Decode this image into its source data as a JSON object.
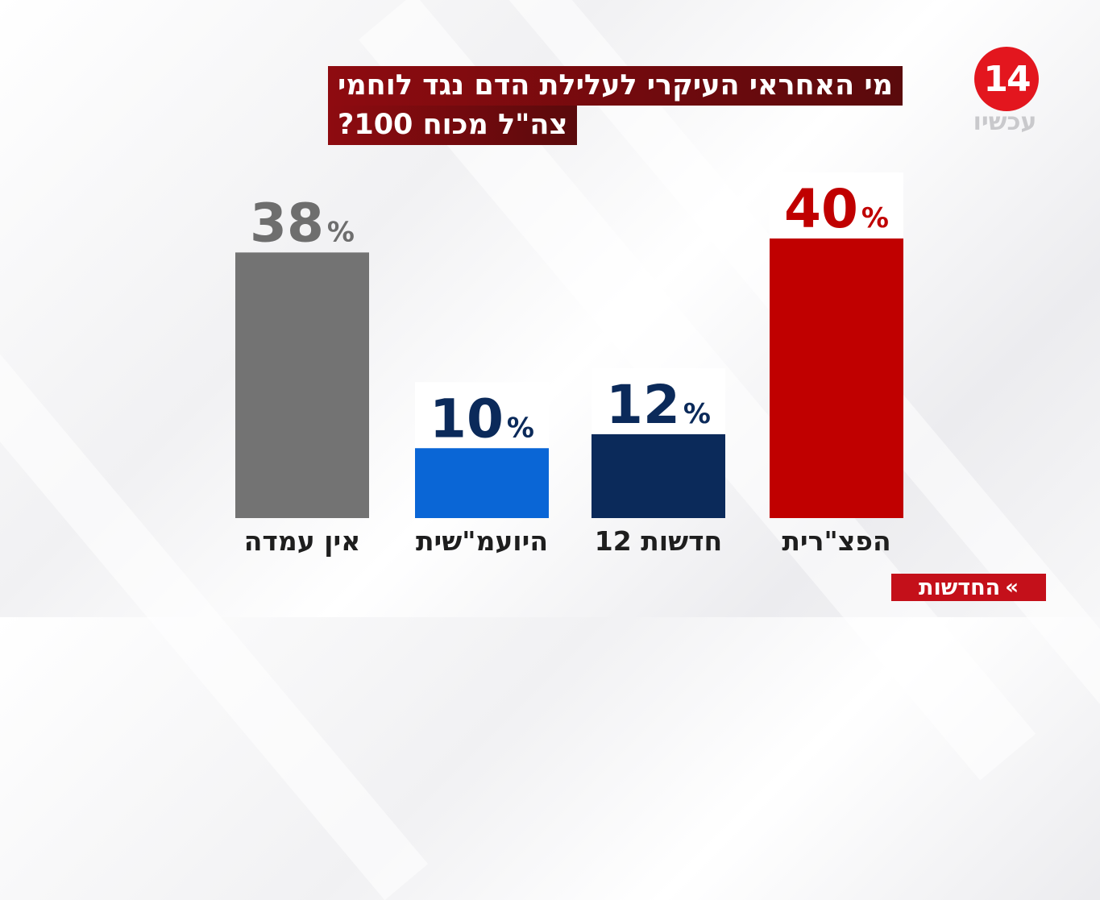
{
  "title_lines": [
    "מי האחראי העיקרי לעלילת הדם נגד לוחמי",
    "צה\"ל מכוח 100?"
  ],
  "logo": {
    "number": "14",
    "subtitle": "עכשיו",
    "color": "#e3161e"
  },
  "footer": {
    "label": "החדשות",
    "chevron": "»"
  },
  "chart_data": {
    "type": "bar",
    "title": "מי האחראי העיקרי לעלילת הדם נגד לוחמי צה\"ל מכוח 100?",
    "categories": [
      "אין עמדה",
      "היועמ\"שית",
      "חדשות 12",
      "הפצ\"רית"
    ],
    "values": [
      38,
      10,
      12,
      40
    ],
    "value_suffix": "%",
    "colors": [
      "#737373",
      "#0a66d6",
      "#0b2a5a",
      "#c00000"
    ],
    "label_colors": [
      "#6e6e6e",
      "#0b2a5a",
      "#0b2a5a",
      "#c00000"
    ],
    "ylim": [
      0,
      40
    ],
    "grid": false,
    "legend": "none"
  }
}
